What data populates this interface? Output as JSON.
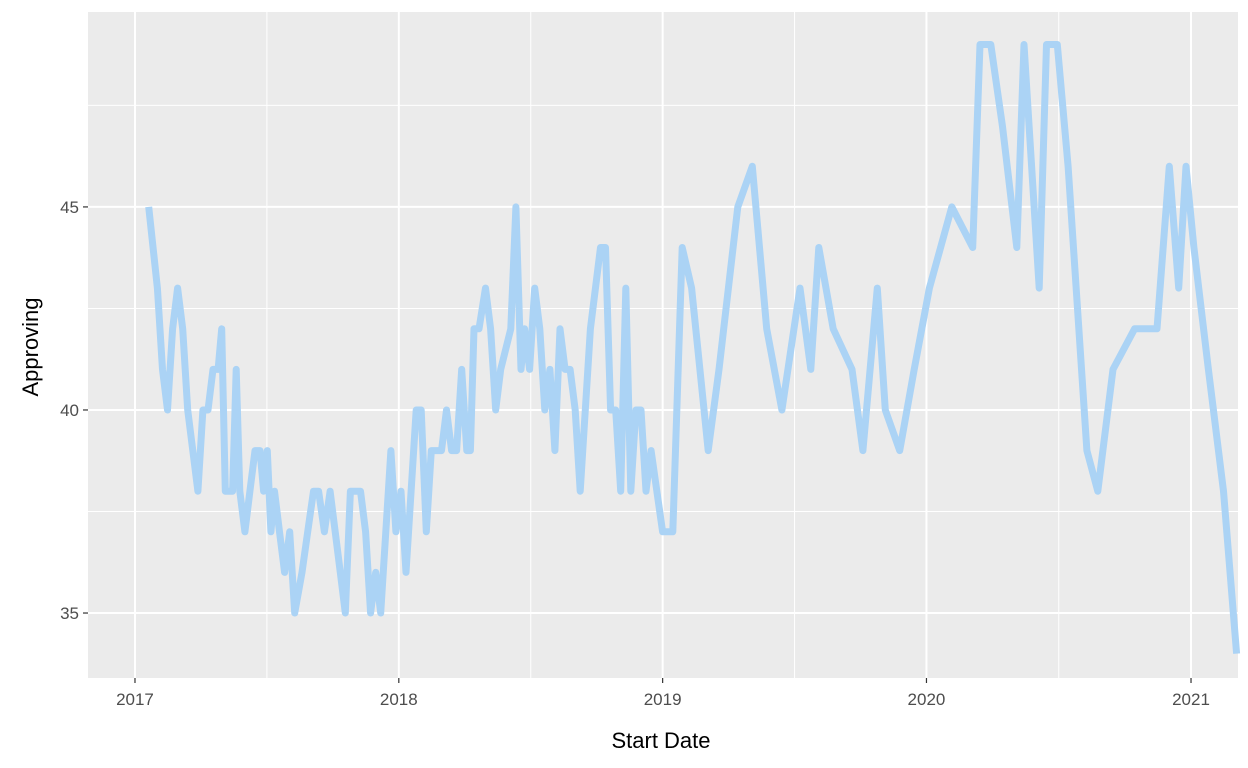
{
  "chart_data": {
    "type": "line",
    "xlabel": "Start Date",
    "ylabel": "Approving",
    "x_axis_type": "date",
    "xlim": [
      "2016-10-28",
      "2021-03-07"
    ],
    "ylim": [
      33.4,
      49.8
    ],
    "x_ticks": [
      {
        "value": "2017-01-01",
        "label": "2017"
      },
      {
        "value": "2018-01-01",
        "label": "2018"
      },
      {
        "value": "2019-01-01",
        "label": "2019"
      },
      {
        "value": "2020-01-01",
        "label": "2020"
      },
      {
        "value": "2021-01-01",
        "label": "2021"
      }
    ],
    "y_ticks": [
      35,
      40,
      45
    ],
    "grid": true,
    "legend": "none",
    "series": [
      {
        "color": "#abd3f5",
        "points": [
          [
            "2017-01-20",
            45
          ],
          [
            "2017-02-01",
            43
          ],
          [
            "2017-02-08",
            41
          ],
          [
            "2017-02-15",
            40
          ],
          [
            "2017-02-22",
            42
          ],
          [
            "2017-03-01",
            43
          ],
          [
            "2017-03-08",
            42
          ],
          [
            "2017-03-15",
            40
          ],
          [
            "2017-03-22",
            39
          ],
          [
            "2017-03-29",
            38
          ],
          [
            "2017-04-05",
            40
          ],
          [
            "2017-04-12",
            40
          ],
          [
            "2017-04-19",
            41
          ],
          [
            "2017-04-26",
            41
          ],
          [
            "2017-05-01",
            42
          ],
          [
            "2017-05-06",
            38
          ],
          [
            "2017-05-11",
            38
          ],
          [
            "2017-05-16",
            38
          ],
          [
            "2017-05-21",
            41
          ],
          [
            "2017-05-26",
            38
          ],
          [
            "2017-06-02",
            37
          ],
          [
            "2017-06-09",
            38
          ],
          [
            "2017-06-16",
            39
          ],
          [
            "2017-06-23",
            39
          ],
          [
            "2017-06-28",
            38
          ],
          [
            "2017-07-03",
            39
          ],
          [
            "2017-07-08",
            37
          ],
          [
            "2017-07-13",
            38
          ],
          [
            "2017-07-20",
            37
          ],
          [
            "2017-07-27",
            36
          ],
          [
            "2017-08-03",
            37
          ],
          [
            "2017-08-10",
            35
          ],
          [
            "2017-08-20",
            36
          ],
          [
            "2017-08-28",
            37
          ],
          [
            "2017-09-05",
            38
          ],
          [
            "2017-09-12",
            38
          ],
          [
            "2017-09-20",
            37
          ],
          [
            "2017-09-28",
            38
          ],
          [
            "2017-10-05",
            37
          ],
          [
            "2017-10-12",
            36
          ],
          [
            "2017-10-19",
            35
          ],
          [
            "2017-10-26",
            38
          ],
          [
            "2017-11-02",
            38
          ],
          [
            "2017-11-09",
            38
          ],
          [
            "2017-11-16",
            37
          ],
          [
            "2017-11-23",
            35
          ],
          [
            "2017-11-30",
            36
          ],
          [
            "2017-12-07",
            35
          ],
          [
            "2017-12-14",
            37
          ],
          [
            "2017-12-21",
            39
          ],
          [
            "2017-12-28",
            37
          ],
          [
            "2018-01-04",
            38
          ],
          [
            "2018-01-11",
            36
          ],
          [
            "2018-01-18",
            38
          ],
          [
            "2018-01-25",
            40
          ],
          [
            "2018-02-01",
            40
          ],
          [
            "2018-02-08",
            37
          ],
          [
            "2018-02-15",
            39
          ],
          [
            "2018-02-22",
            39
          ],
          [
            "2018-03-01",
            39
          ],
          [
            "2018-03-08",
            40
          ],
          [
            "2018-03-15",
            39
          ],
          [
            "2018-03-22",
            39
          ],
          [
            "2018-03-29",
            41
          ],
          [
            "2018-04-05",
            39
          ],
          [
            "2018-04-10",
            39
          ],
          [
            "2018-04-15",
            42
          ],
          [
            "2018-04-22",
            42
          ],
          [
            "2018-05-01",
            43
          ],
          [
            "2018-05-08",
            42
          ],
          [
            "2018-05-15",
            40
          ],
          [
            "2018-05-22",
            41
          ],
          [
            "2018-06-05",
            42
          ],
          [
            "2018-06-12",
            45
          ],
          [
            "2018-06-19",
            41
          ],
          [
            "2018-06-24",
            42
          ],
          [
            "2018-07-01",
            41
          ],
          [
            "2018-07-08",
            43
          ],
          [
            "2018-07-15",
            42
          ],
          [
            "2018-07-22",
            40
          ],
          [
            "2018-07-29",
            41
          ],
          [
            "2018-08-05",
            39
          ],
          [
            "2018-08-12",
            42
          ],
          [
            "2018-08-19",
            41
          ],
          [
            "2018-08-26",
            41
          ],
          [
            "2018-09-02",
            40
          ],
          [
            "2018-09-09",
            38
          ],
          [
            "2018-09-23",
            42
          ],
          [
            "2018-10-07",
            44
          ],
          [
            "2018-10-14",
            44
          ],
          [
            "2018-10-21",
            40
          ],
          [
            "2018-10-28",
            40
          ],
          [
            "2018-11-04",
            38
          ],
          [
            "2018-11-11",
            43
          ],
          [
            "2018-11-18",
            38
          ],
          [
            "2018-11-25",
            40
          ],
          [
            "2018-12-02",
            40
          ],
          [
            "2018-12-09",
            38
          ],
          [
            "2018-12-16",
            39
          ],
          [
            "2019-01-01",
            37
          ],
          [
            "2019-01-15",
            37
          ],
          [
            "2019-01-28",
            44
          ],
          [
            "2019-02-10",
            43
          ],
          [
            "2019-03-05",
            39
          ],
          [
            "2019-03-20",
            41
          ],
          [
            "2019-04-15",
            45
          ],
          [
            "2019-05-05",
            46
          ],
          [
            "2019-05-25",
            42
          ],
          [
            "2019-06-15",
            40
          ],
          [
            "2019-07-10",
            43
          ],
          [
            "2019-07-25",
            41
          ],
          [
            "2019-08-05",
            44
          ],
          [
            "2019-08-25",
            42
          ],
          [
            "2019-09-20",
            41
          ],
          [
            "2019-10-05",
            39
          ],
          [
            "2019-10-25",
            43
          ],
          [
            "2019-11-05",
            40
          ],
          [
            "2019-11-25",
            39
          ],
          [
            "2019-12-15",
            41
          ],
          [
            "2020-01-05",
            43
          ],
          [
            "2020-02-05",
            45
          ],
          [
            "2020-03-05",
            44
          ],
          [
            "2020-03-15",
            49
          ],
          [
            "2020-03-30",
            49
          ],
          [
            "2020-04-15",
            47
          ],
          [
            "2020-05-05",
            44
          ],
          [
            "2020-05-15",
            49
          ],
          [
            "2020-06-05",
            43
          ],
          [
            "2020-06-15",
            49
          ],
          [
            "2020-06-30",
            49
          ],
          [
            "2020-07-15",
            46
          ],
          [
            "2020-08-10",
            39
          ],
          [
            "2020-08-25",
            38
          ],
          [
            "2020-09-15",
            41
          ],
          [
            "2020-10-15",
            42
          ],
          [
            "2020-11-15",
            42
          ],
          [
            "2020-12-02",
            46
          ],
          [
            "2020-12-15",
            43
          ],
          [
            "2020-12-25",
            46
          ],
          [
            "2021-01-05",
            44
          ],
          [
            "2021-01-25",
            41
          ],
          [
            "2021-02-15",
            38
          ],
          [
            "2021-03-05",
            34
          ]
        ]
      }
    ]
  }
}
